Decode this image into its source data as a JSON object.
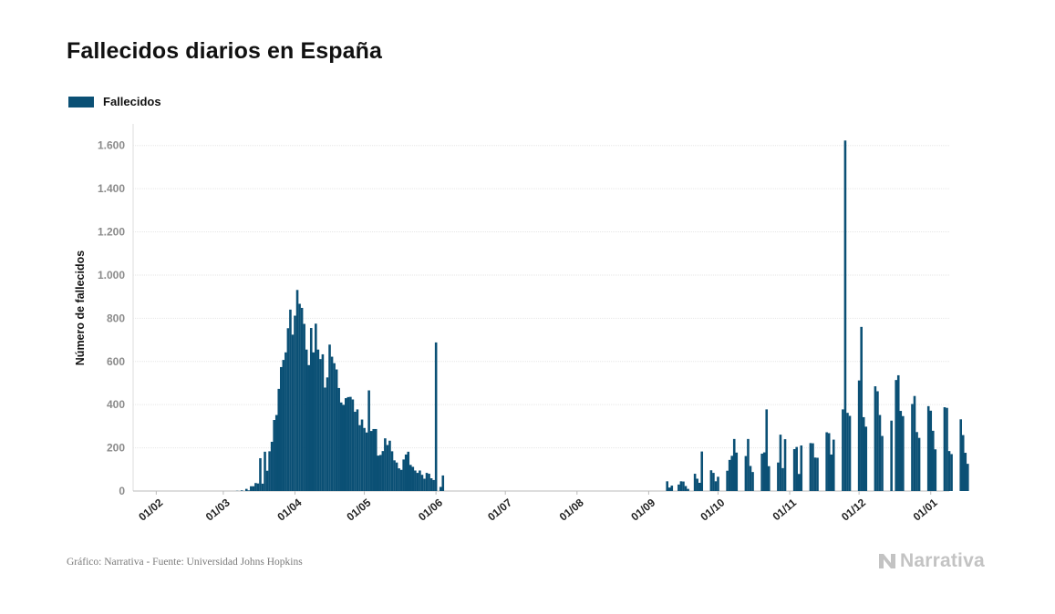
{
  "chart_data": {
    "type": "bar",
    "title": "Fallecidos diarios en España",
    "ylabel": "Número de fallecidos",
    "xlabel": "",
    "legend": {
      "position": "top-left",
      "entries": [
        "Fallecidos"
      ]
    },
    "color": "#0b5075",
    "grid": true,
    "ylim": [
      0,
      1700
    ],
    "y_ticks": [
      0,
      200,
      400,
      600,
      800,
      1000,
      1200,
      1400,
      1600
    ],
    "y_tick_labels": [
      "0",
      "200",
      "400",
      "600",
      "800",
      "1.000",
      "1.200",
      "1.400",
      "1.600"
    ],
    "x_tick_labels": [
      "01/02",
      "01/03",
      "01/04",
      "01/05",
      "01/06",
      "01/07",
      "01/08",
      "01/09",
      "01/10",
      "01/11",
      "01/12",
      "01/01"
    ],
    "x_tick_dates": [
      "2020-02-01",
      "2020-03-01",
      "2020-04-01",
      "2020-05-01",
      "2020-06-01",
      "2020-07-01",
      "2020-08-01",
      "2020-09-01",
      "2020-10-01",
      "2020-11-01",
      "2020-12-01",
      "2021-01-01"
    ],
    "x_range": [
      "2020-01-22",
      "2021-01-09"
    ],
    "series": [
      {
        "name": "Fallecidos",
        "start_date": "2020-03-01",
        "values": [
          0,
          0,
          0,
          0,
          0,
          0,
          1,
          0,
          3,
          0,
          10,
          3,
          22,
          22,
          37,
          35,
          152,
          34,
          182,
          94,
          184,
          228,
          329,
          352,
          473,
          574,
          607,
          642,
          754,
          840,
          724,
          812,
          931,
          867,
          848,
          774,
          655,
          583,
          755,
          642,
          775,
          655,
          611,
          633,
          479,
          526,
          678,
          622,
          592,
          563,
          477,
          410,
          399,
          430,
          435,
          436,
          424,
          367,
          378,
          305,
          331,
          292,
          271,
          466,
          278,
          287,
          287,
          164,
          167,
          185,
          244,
          213,
          233,
          184,
          142,
          132,
          105,
          98,
          146,
          169,
          182,
          121,
          112,
          95,
          84,
          95,
          75,
          57,
          84,
          80,
          59,
          51,
          688,
          0,
          19,
          72,
          0,
          0,
          0,
          0,
          0,
          0,
          0,
          0,
          0,
          0,
          0,
          0,
          0,
          0,
          0,
          0,
          0,
          0,
          0,
          0,
          0,
          0,
          0,
          0,
          0,
          0,
          0,
          0,
          0,
          0,
          0,
          0,
          0,
          0,
          0,
          0,
          0,
          0,
          0,
          0,
          0,
          0,
          0,
          0,
          0,
          0,
          0,
          0,
          0,
          0,
          0,
          0,
          0,
          0,
          0,
          0,
          0,
          0,
          0,
          0,
          0,
          0,
          0,
          0,
          0,
          0,
          0,
          0,
          0,
          0,
          0,
          0,
          0,
          0,
          0,
          0,
          0,
          0,
          0,
          0,
          0,
          0,
          0,
          0,
          0,
          0,
          0,
          0,
          0,
          0,
          0,
          0,
          0,
          0,
          0,
          0,
          45,
          16,
          25,
          0,
          0,
          30,
          45,
          44,
          23,
          10,
          0,
          0,
          80,
          57,
          38,
          183,
          0,
          0,
          0,
          96,
          84,
          45,
          66,
          0,
          0,
          0,
          94,
          144,
          163,
          241,
          178,
          0,
          0,
          0,
          162,
          241,
          116,
          88,
          0,
          0,
          0,
          173,
          179,
          378,
          115,
          0,
          0,
          0,
          132,
          261,
          106,
          240,
          0,
          0,
          0,
          194,
          204,
          79,
          211,
          0,
          0,
          0,
          222,
          221,
          155,
          154,
          0,
          0,
          0,
          272,
          268,
          169,
          238,
          0,
          0,
          0,
          378,
          1623,
          362,
          348,
          0,
          0,
          0,
          512,
          760,
          342,
          298,
          0,
          0,
          0,
          485,
          462,
          352,
          255,
          0,
          0,
          0,
          326,
          0,
          514,
          536,
          371,
          347,
          0,
          0,
          0,
          403,
          440,
          273,
          246,
          0,
          0,
          0,
          393,
          372,
          279,
          193,
          0,
          0,
          0,
          388,
          385,
          185,
          171,
          0,
          0,
          0,
          332,
          259,
          177,
          126
        ]
      }
    ]
  },
  "source": "Gráfico: Narrativa - Fuente: Universidad Johns Hopkins",
  "brand": {
    "name": "Narrativa",
    "icon": "narrativa-logo-icon",
    "color": "#c3c3c3"
  }
}
